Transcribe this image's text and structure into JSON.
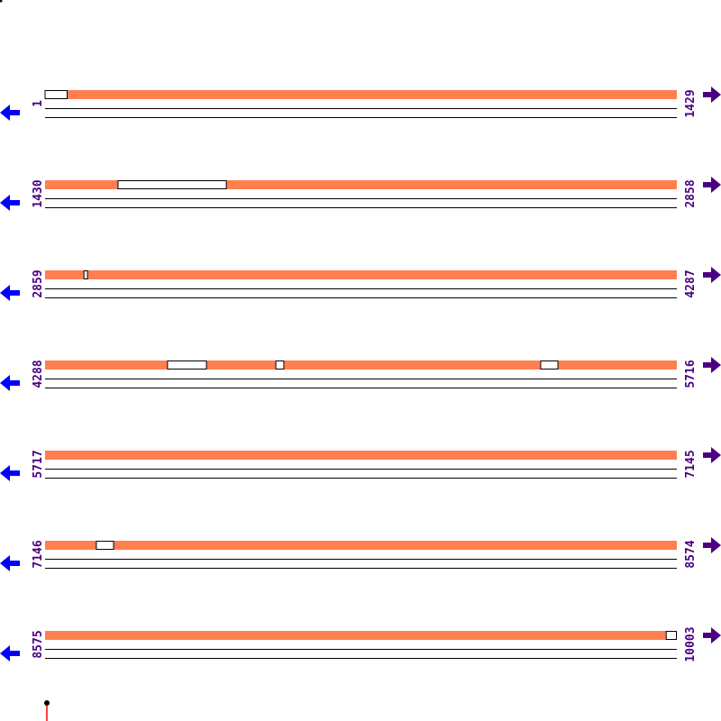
{
  "colors": {
    "covered": "#ff7f50",
    "label": "#4b0082",
    "left_arrow": "#0000ff",
    "right_arrow": "#4b0082",
    "marker_line": "#ff0000"
  },
  "bases_per_row": 1429,
  "rows": [
    {
      "start": "1",
      "end": "1429",
      "gaps": [
        [
          1,
          51
        ]
      ]
    },
    {
      "start": "1430",
      "end": "2858",
      "gaps": [
        [
          1595,
          1840
        ]
      ]
    },
    {
      "start": "2859",
      "end": "4287",
      "gaps": [
        [
          2947,
          2955
        ]
      ]
    },
    {
      "start": "4288",
      "end": "5716",
      "gaps": [
        [
          4565,
          4653
        ],
        [
          4810,
          4828
        ],
        [
          5409,
          5448
        ]
      ]
    },
    {
      "start": "5717",
      "end": "7145",
      "gaps": []
    },
    {
      "start": "7146",
      "end": "8574",
      "gaps": [
        [
          7262,
          7301
        ]
      ]
    },
    {
      "start": "8575",
      "end": "10003",
      "gaps": [
        [
          9980,
          10003
        ]
      ]
    }
  ],
  "icons": {
    "left": "arrow-left-icon",
    "right": "arrow-right-icon",
    "marker": "position-marker-icon"
  }
}
